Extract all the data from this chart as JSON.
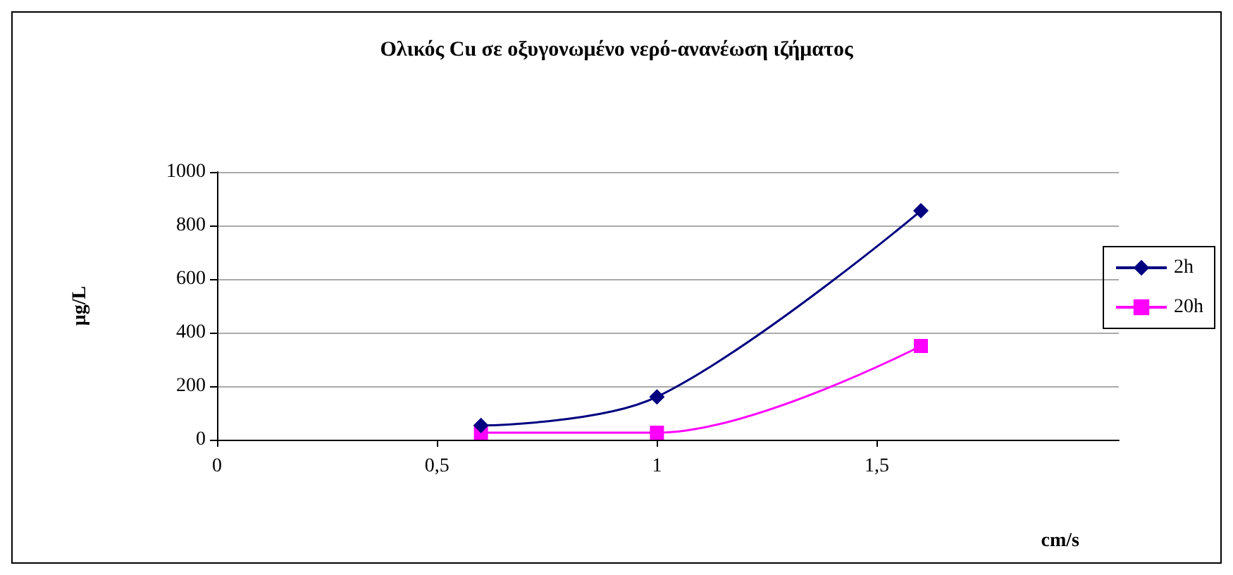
{
  "chart_data": {
    "type": "line",
    "title": "Ολικός Cu σε οξυγονωμένο νερό-ανανέωση ιζήματος",
    "xlabel": "cm/s",
    "ylabel": "μg/L",
    "x": [
      0.6,
      1,
      1.6
    ],
    "series": [
      {
        "name": "2h",
        "color": "#000080",
        "marker": "diamond",
        "values": [
          53,
          160,
          855
        ]
      },
      {
        "name": "20h",
        "color": "#ff00ff",
        "marker": "square",
        "values": [
          26,
          26,
          350
        ]
      }
    ],
    "xlim": [
      0,
      2.05
    ],
    "xticks": [
      0,
      {
        "value": 0.5,
        "label": "0,5"
      },
      1,
      {
        "value": 1.5,
        "label": "1,5"
      }
    ],
    "ylim": [
      0,
      1000
    ],
    "yticks": [
      0,
      200,
      400,
      600,
      800,
      1000
    ],
    "grid": "y",
    "legend": "right",
    "line_style": "solid"
  }
}
